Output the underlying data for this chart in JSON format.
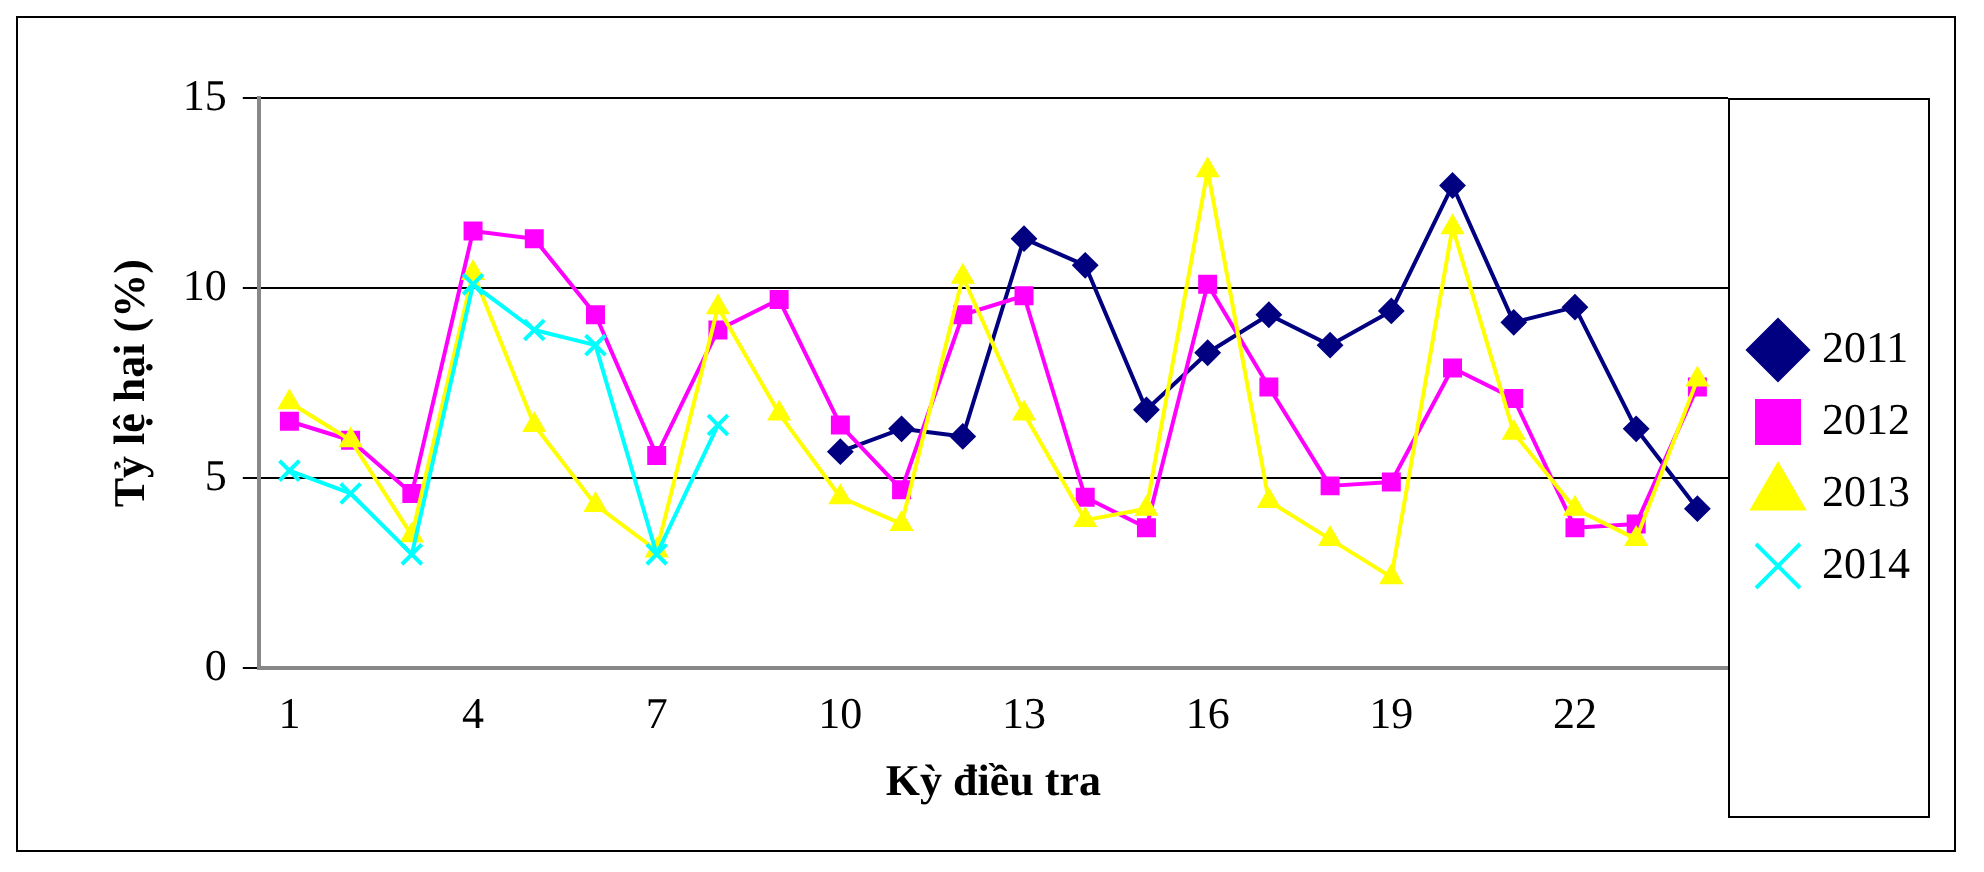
{
  "chart_data": {
    "type": "line",
    "xlabel": "Kỳ điều tra",
    "ylabel": "Tỷ lệ hại (%)",
    "categories": [
      "1",
      null,
      null,
      "4",
      null,
      null,
      "7",
      null,
      null,
      "10",
      null,
      null,
      "13",
      null,
      null,
      "16",
      null,
      null,
      "19",
      null,
      null,
      "22",
      null,
      null
    ],
    "series": [
      {
        "name": "2011",
        "color": "#000080",
        "marker": "diamond",
        "values": [
          null,
          null,
          null,
          null,
          null,
          null,
          null,
          null,
          null,
          5.7,
          6.3,
          6.1,
          11.3,
          10.6,
          6.8,
          8.3,
          9.3,
          8.5,
          9.4,
          12.7,
          9.1,
          9.5,
          6.3,
          4.2
        ]
      },
      {
        "name": "2012",
        "color": "#ff00ff",
        "marker": "square",
        "values": [
          6.5,
          6.0,
          4.6,
          11.5,
          11.3,
          9.3,
          5.6,
          8.9,
          9.7,
          6.4,
          4.7,
          9.3,
          9.8,
          4.5,
          3.7,
          10.1,
          7.4,
          4.8,
          4.9,
          7.9,
          7.1,
          3.7,
          3.8,
          7.4
        ]
      },
      {
        "name": "2013",
        "color": "#ffff00",
        "marker": "triangle",
        "values": [
          7.0,
          6.0,
          3.5,
          10.4,
          6.4,
          4.3,
          3.1,
          9.5,
          6.7,
          4.5,
          3.8,
          10.3,
          6.7,
          3.9,
          4.2,
          13.1,
          4.4,
          3.4,
          2.4,
          11.6,
          6.2,
          4.2,
          3.4,
          7.6
        ]
      },
      {
        "name": "2014",
        "color": "#00ffff",
        "marker": "cross",
        "values": [
          5.2,
          4.6,
          3.0,
          10.1,
          8.9,
          8.5,
          3.0,
          6.4,
          null,
          null,
          null,
          null,
          null,
          null,
          null,
          null,
          null,
          null,
          null,
          null,
          null,
          null,
          null,
          null
        ]
      }
    ],
    "ylim": [
      0,
      15
    ],
    "yticks": [
      0,
      5,
      10,
      15
    ],
    "grid": "y",
    "legend": "right"
  }
}
